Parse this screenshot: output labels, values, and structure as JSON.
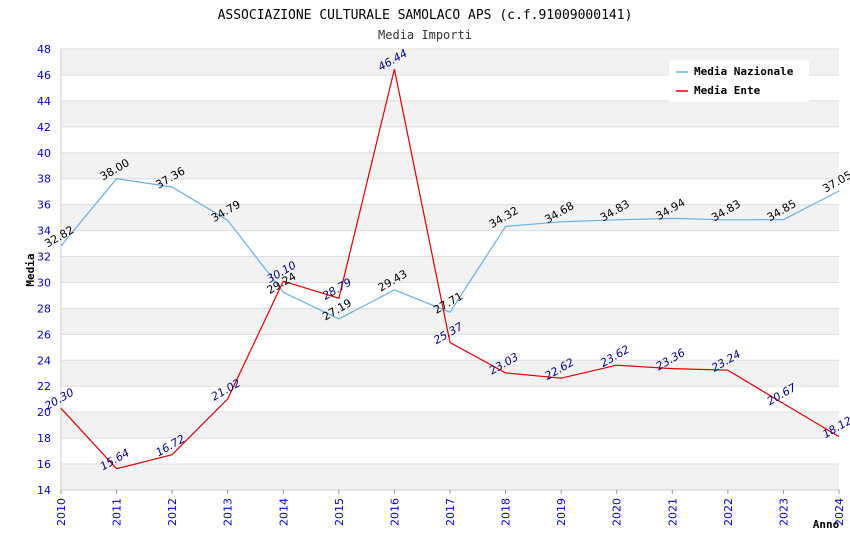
{
  "chart_data": {
    "type": "line",
    "title": "ASSOCIAZIONE CULTURALE SAMOLACO APS (c.f.91009000141)",
    "subtitle": "Media Importi",
    "xlabel": "Anno",
    "ylabel": "Media",
    "ylim": [
      14,
      48
    ],
    "y_ticks": [
      "14",
      "16",
      "18",
      "20",
      "22",
      "24",
      "26",
      "28",
      "30",
      "32",
      "34",
      "36",
      "38",
      "40",
      "42",
      "44",
      "46",
      "48"
    ],
    "x": [
      "2010",
      "2011",
      "2012",
      "2013",
      "2014",
      "2015",
      "2016",
      "2017",
      "2018",
      "2019",
      "2020",
      "2021",
      "2022",
      "2023",
      "2024"
    ],
    "legend_position": "top-right",
    "grid": true,
    "series": [
      {
        "name": "Media Nazionale",
        "color": "#6aaee6",
        "values": [
          32.82,
          38.0,
          37.36,
          34.79,
          29.24,
          27.19,
          29.43,
          27.71,
          34.32,
          34.68,
          34.83,
          34.94,
          34.83,
          34.85,
          37.05
        ],
        "labels": [
          "32.82",
          "38.00",
          "37.36",
          "34.79",
          "29.24",
          "27.19",
          "29.43",
          "27.71",
          "34.32",
          "34.68",
          "34.83",
          "34.94",
          "34.83",
          "34.85",
          "37.05"
        ]
      },
      {
        "name": "Media Ente",
        "color": "#dd0000",
        "values": [
          20.3,
          15.64,
          16.72,
          21.02,
          30.1,
          28.79,
          46.44,
          25.37,
          23.03,
          22.62,
          23.62,
          23.36,
          23.24,
          20.67,
          18.12
        ],
        "labels": [
          "20.30",
          "15.64",
          "16.72",
          "21.02",
          "30.10",
          "28.79",
          "46.44",
          "25.37",
          "23.03",
          "22.62",
          "23.62",
          "23.36",
          "23.24",
          "20.67",
          "18.12"
        ]
      }
    ]
  }
}
